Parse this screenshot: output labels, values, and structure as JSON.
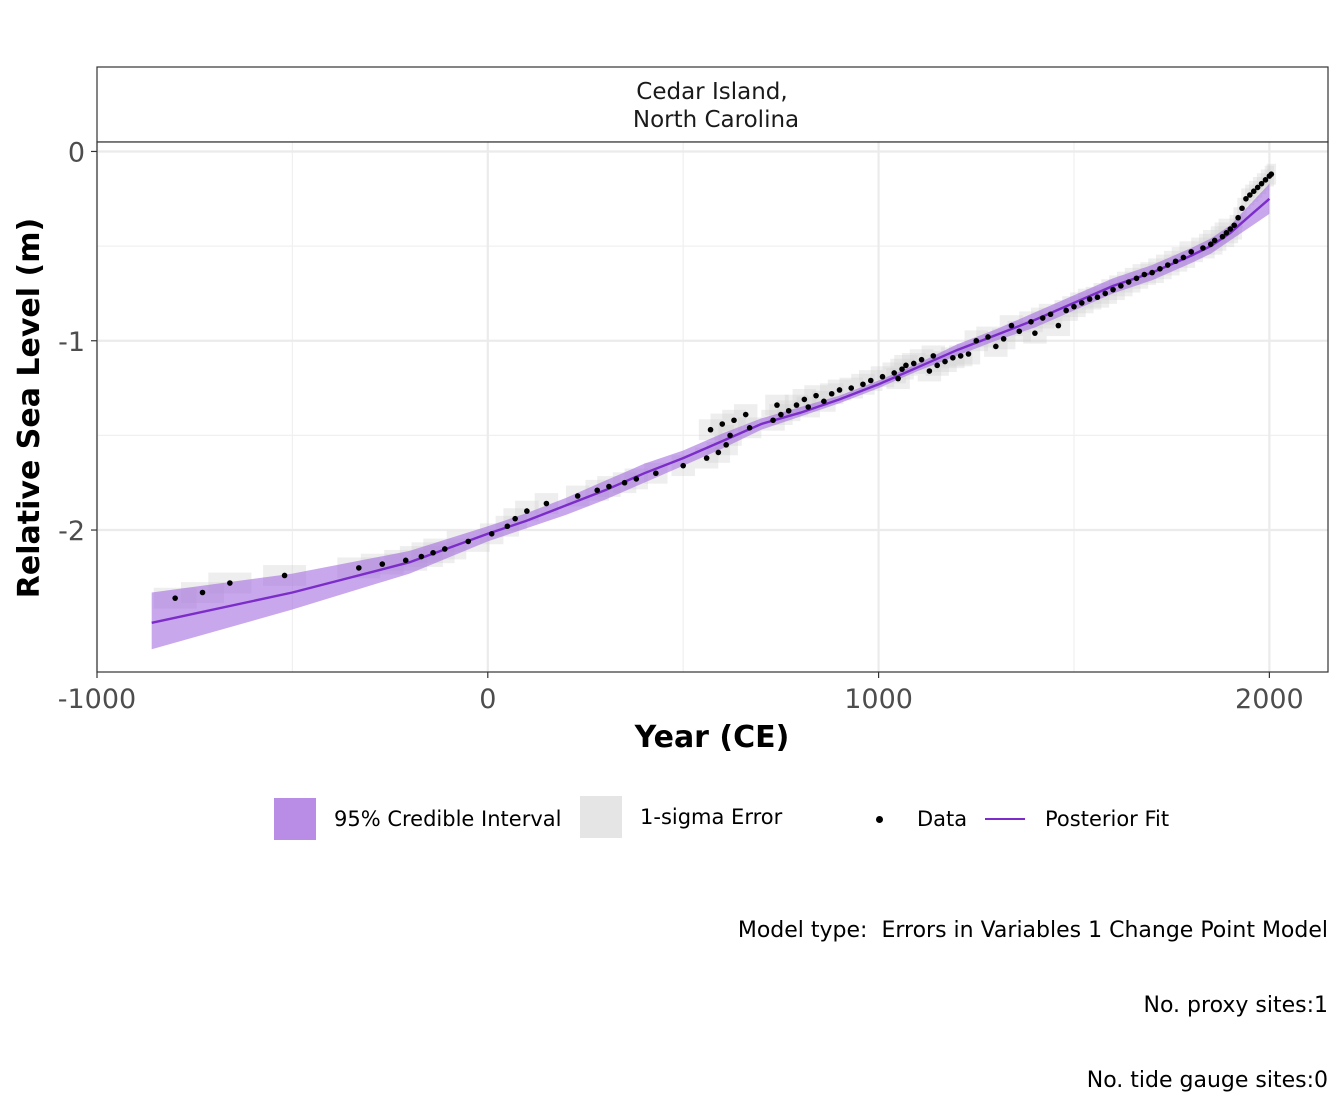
{
  "chart_data": {
    "type": "line",
    "facet_title": [
      "Cedar Island,",
      "North Carolina"
    ],
    "xlabel": "Year (CE)",
    "ylabel": "Relative Sea Level (m)",
    "xlim": [
      -1000,
      2150
    ],
    "ylim": [
      -2.75,
      0.05
    ],
    "x_ticks": [
      -1000,
      0,
      1000,
      2000
    ],
    "x_tick_labels": [
      "-1000",
      "0",
      "1000",
      "2000"
    ],
    "y_ticks": [
      0,
      -1,
      -2
    ],
    "y_tick_labels": [
      "0",
      "-1",
      "-2"
    ],
    "grid": true,
    "colors": {
      "fit": "#7b2cc9",
      "ci": "#a56ce0",
      "ci_swatch": "#b98de6",
      "error": "#cfcfcf",
      "error_swatch": "#e5e5e5",
      "data": "#000000"
    },
    "series": [
      {
        "name": "Posterior Fit",
        "x": [
          -860,
          -500,
          -200,
          0,
          100,
          200,
          300,
          400,
          500,
          600,
          700,
          800,
          900,
          1000,
          1100,
          1200,
          1300,
          1400,
          1500,
          1600,
          1700,
          1800,
          1850,
          1900,
          1950,
          2000
        ],
        "y": [
          -2.49,
          -2.33,
          -2.17,
          -2.02,
          -1.95,
          -1.87,
          -1.79,
          -1.7,
          -1.62,
          -1.53,
          -1.44,
          -1.38,
          -1.31,
          -1.23,
          -1.14,
          -1.05,
          -0.97,
          -0.89,
          -0.8,
          -0.71,
          -0.64,
          -0.55,
          -0.5,
          -0.43,
          -0.34,
          -0.25
        ],
        "lower": [
          -2.63,
          -2.42,
          -2.23,
          -2.06,
          -1.99,
          -1.92,
          -1.84,
          -1.75,
          -1.66,
          -1.57,
          -1.47,
          -1.4,
          -1.33,
          -1.25,
          -1.16,
          -1.08,
          -1.0,
          -0.93,
          -0.84,
          -0.75,
          -0.68,
          -0.59,
          -0.54,
          -0.47,
          -0.4,
          -0.33
        ],
        "upper": [
          -2.33,
          -2.23,
          -2.11,
          -1.98,
          -1.91,
          -1.83,
          -1.74,
          -1.65,
          -1.58,
          -1.49,
          -1.41,
          -1.35,
          -1.29,
          -1.21,
          -1.12,
          -1.02,
          -0.94,
          -0.85,
          -0.76,
          -0.67,
          -0.6,
          -0.51,
          -0.46,
          -0.39,
          -0.28,
          -0.17
        ]
      },
      {
        "name": "Data",
        "x": [
          -800,
          -730,
          -660,
          -520,
          -330,
          -270,
          -210,
          -170,
          -140,
          -110,
          -50,
          10,
          50,
          70,
          100,
          150,
          230,
          280,
          310,
          350,
          380,
          430,
          500,
          560,
          570,
          590,
          600,
          610,
          620,
          630,
          660,
          670,
          730,
          740,
          750,
          770,
          790,
          810,
          820,
          840,
          860,
          880,
          900,
          930,
          960,
          980,
          1010,
          1040,
          1050,
          1060,
          1070,
          1090,
          1110,
          1130,
          1140,
          1150,
          1170,
          1190,
          1210,
          1230,
          1250,
          1280,
          1300,
          1320,
          1340,
          1360,
          1390,
          1400,
          1420,
          1440,
          1460,
          1480,
          1500,
          1520,
          1540,
          1560,
          1580,
          1600,
          1620,
          1640,
          1660,
          1680,
          1700,
          1720,
          1740,
          1760,
          1780,
          1800,
          1830,
          1850,
          1860,
          1880,
          1890,
          1900,
          1910,
          1920,
          1930,
          1940,
          1950,
          1960,
          1970,
          1980,
          1990,
          2000,
          2005
        ],
        "y": [
          -2.36,
          -2.33,
          -2.28,
          -2.24,
          -2.2,
          -2.18,
          -2.16,
          -2.14,
          -2.12,
          -2.1,
          -2.06,
          -2.02,
          -1.98,
          -1.94,
          -1.9,
          -1.86,
          -1.82,
          -1.79,
          -1.77,
          -1.75,
          -1.73,
          -1.7,
          -1.66,
          -1.62,
          -1.47,
          -1.59,
          -1.44,
          -1.55,
          -1.5,
          -1.42,
          -1.39,
          -1.46,
          -1.42,
          -1.34,
          -1.39,
          -1.37,
          -1.34,
          -1.31,
          -1.35,
          -1.29,
          -1.32,
          -1.28,
          -1.26,
          -1.25,
          -1.23,
          -1.21,
          -1.19,
          -1.17,
          -1.2,
          -1.15,
          -1.13,
          -1.12,
          -1.1,
          -1.16,
          -1.08,
          -1.13,
          -1.11,
          -1.09,
          -1.08,
          -1.07,
          -1.0,
          -0.98,
          -1.03,
          -0.99,
          -0.92,
          -0.95,
          -0.9,
          -0.96,
          -0.88,
          -0.86,
          -0.92,
          -0.84,
          -0.82,
          -0.8,
          -0.78,
          -0.77,
          -0.75,
          -0.73,
          -0.71,
          -0.69,
          -0.67,
          -0.65,
          -0.64,
          -0.62,
          -0.6,
          -0.58,
          -0.56,
          -0.53,
          -0.51,
          -0.49,
          -0.47,
          -0.45,
          -0.43,
          -0.41,
          -0.39,
          -0.35,
          -0.3,
          -0.25,
          -0.23,
          -0.21,
          -0.19,
          -0.17,
          -0.15,
          -0.13,
          -0.12
        ]
      }
    ],
    "legend": {
      "position": "bottom",
      "entries": [
        "95% Credible Interval",
        "1-sigma Error",
        "Data",
        "Posterior Fit"
      ]
    },
    "caption": [
      "Model type:  Errors in Variables 1 Change Point Model",
      "No. proxy sites:1",
      "No. tide gauge sites:0"
    ]
  }
}
